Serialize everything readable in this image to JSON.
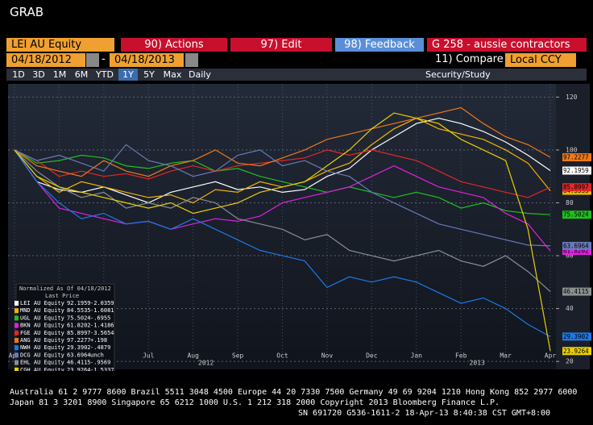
{
  "header": {
    "title": "GRAB"
  },
  "toolbar": {
    "security": "LEI AU Equity",
    "actions": "90) Actions",
    "edit": "97) Edit",
    "feedback": "98) Feedback",
    "function": "G 258 - aussie contractors",
    "start_date": "04/18/2012",
    "dash": "-",
    "end_date": "04/18/2013",
    "compare": "11) Compare",
    "currency": "Local CCY",
    "periods": [
      "1D",
      "3D",
      "1M",
      "6M",
      "YTD",
      "1Y",
      "5Y",
      "Max"
    ],
    "frequency": "Daily",
    "study": "Security/Study"
  },
  "chart_data": {
    "type": "line",
    "legend_title": "Normalized As Of 04/18/2012",
    "legend_subtitle": "Last Price",
    "annotations": [
      "2012",
      "2013"
    ],
    "categories": [
      "Apr",
      null,
      "May",
      null,
      "Jun",
      null,
      "Jul",
      null,
      "Aug",
      null,
      "Sep",
      null,
      "Oct",
      null,
      "Nov",
      null,
      "Dec",
      null,
      "Jan",
      null,
      "Feb",
      null,
      "Mar",
      null,
      "Apr"
    ],
    "ylim": [
      17,
      125
    ],
    "yticks": [
      20,
      40,
      60,
      80,
      100,
      120
    ],
    "grid": true,
    "series": [
      {
        "name": "LEI AU Equity",
        "color": "#ffffff",
        "change": "-2.0359",
        "last": 92.1959,
        "values": [
          100,
          88,
          85,
          84,
          86,
          83,
          80,
          84,
          86,
          88,
          85,
          86,
          84,
          85,
          90,
          93,
          100,
          105,
          110,
          112,
          110,
          107,
          103,
          98,
          92.1959
        ]
      },
      {
        "name": "MND AU Equity",
        "color": "#f0b400",
        "change": "-1.6081",
        "last": 84.5535,
        "values": [
          100,
          90,
          84,
          88,
          86,
          84,
          82,
          83,
          80,
          85,
          84,
          88,
          86,
          88,
          92,
          95,
          102,
          108,
          112,
          108,
          106,
          104,
          100,
          95,
          84.5535
        ]
      },
      {
        "name": "UGL AU Equity",
        "color": "#20c020",
        "change": "-.6955",
        "last": 75.5024,
        "values": [
          100,
          95,
          96,
          98,
          97,
          94,
          93,
          95,
          96,
          92,
          93,
          90,
          88,
          86,
          84,
          86,
          84,
          82,
          84,
          82,
          78,
          80,
          77,
          76,
          75.5024
        ]
      },
      {
        "name": "BKN AU Equity",
        "color": "#e020e0",
        "change": "-1.4186",
        "last": 61.8202,
        "values": [
          100,
          88,
          78,
          76,
          74,
          72,
          73,
          70,
          72,
          74,
          73,
          75,
          80,
          82,
          84,
          86,
          90,
          94,
          90,
          86,
          84,
          82,
          76,
          72,
          61.8202
        ]
      },
      {
        "name": "FGE AU Equity",
        "color": "#e02828",
        "change": "-3.5654",
        "last": 85.8997,
        "values": [
          100,
          96,
          90,
          92,
          90,
          91,
          89,
          92,
          94,
          92,
          94,
          95,
          96,
          97,
          100,
          98,
          100,
          98,
          96,
          92,
          88,
          86,
          84,
          82,
          85.8997
        ]
      },
      {
        "name": "ANG AU Equity",
        "color": "#f07818",
        "change": "+.198",
        "last": 97.2277,
        "values": [
          100,
          94,
          92,
          90,
          96,
          92,
          90,
          94,
          96,
          100,
          95,
          94,
          97,
          100,
          104,
          106,
          108,
          110,
          112,
          114,
          116,
          110,
          105,
          102,
          97.2277
        ]
      },
      {
        "name": "NWH AU Equity",
        "color": "#1e78e6",
        "change": "-.4879",
        "last": 29.3902,
        "values": [
          100,
          88,
          80,
          74,
          76,
          72,
          73,
          70,
          74,
          70,
          66,
          62,
          60,
          58,
          48,
          52,
          50,
          52,
          50,
          46,
          42,
          44,
          40,
          34,
          29.3902
        ]
      },
      {
        "name": "DCG AU Equity",
        "color": "#6a7ab8",
        "change": "unch",
        "last": 63.6964,
        "values": [
          100,
          96,
          98,
          95,
          92,
          102,
          96,
          94,
          90,
          92,
          98,
          100,
          94,
          96,
          92,
          90,
          84,
          80,
          76,
          72,
          70,
          68,
          66,
          64,
          63.6964
        ]
      },
      {
        "name": "EHL AU Equity",
        "color": "#8a9090",
        "change": "-.9569",
        "last": 46.4115,
        "values": [
          100,
          92,
          86,
          82,
          84,
          78,
          80,
          78,
          82,
          80,
          74,
          72,
          70,
          66,
          68,
          62,
          60,
          58,
          60,
          62,
          58,
          56,
          60,
          54,
          46.4115
        ]
      },
      {
        "name": "CGH AU Equity",
        "color": "#e8d000",
        "change": "-1.5337",
        "last": 23.9264,
        "values": [
          100,
          90,
          86,
          84,
          82,
          80,
          78,
          80,
          76,
          78,
          80,
          84,
          86,
          88,
          94,
          100,
          108,
          114,
          112,
          110,
          104,
          100,
          96,
          70,
          23.9264
        ]
      }
    ]
  },
  "footer": [
    "Australia 61 2 9777 8600 Brazil 5511 3048 4500 Europe 44 20 7330 7500 Germany 49 69 9204 1210 Hong Kong 852 2977 6000",
    "Japan 81 3 3201 8900       Singapore 65 6212 1000       U.S. 1 212 318 2000       Copyright 2013 Bloomberg Finance L.P.",
    "SN 691720 G536-1611-2 18-Apr-13  8:40:38 CST  GMT+8:00"
  ]
}
